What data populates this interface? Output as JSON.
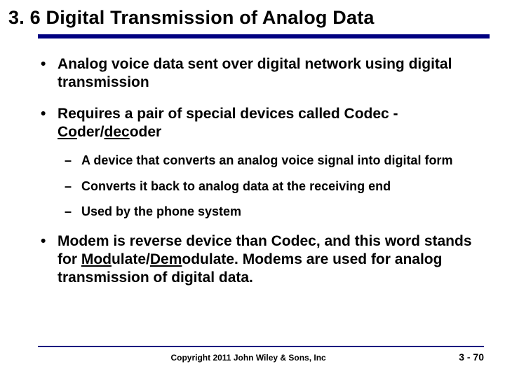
{
  "colors": {
    "accent": "#000080",
    "text": "#000000",
    "background": "#ffffff"
  },
  "title": "3. 6 Digital Transmission of Analog Data",
  "bullets": {
    "b1": "Analog voice data sent over digital network using digital transmission",
    "b2_pre": "Requires a pair of special devices called Codec - ",
    "b2_u1": "Co",
    "b2_mid1": "der/",
    "b2_u2": "dec",
    "b2_post": "oder",
    "b2_sub1": "A device that converts an analog voice signal into digital form",
    "b2_sub2": "Converts it back to analog data at the receiving end",
    "b2_sub3": "Used by the phone system",
    "b3_pre": "Modem is reverse device than Codec, and this word stands for ",
    "b3_u1": "Mod",
    "b3_mid1": "ulate/",
    "b3_u2": "Dem",
    "b3_post": "odulate.  Modems are used for analog transmission of digital data."
  },
  "footer": {
    "copyright": "Copyright 2011 John Wiley & Sons, Inc",
    "page": "3 - 70"
  }
}
